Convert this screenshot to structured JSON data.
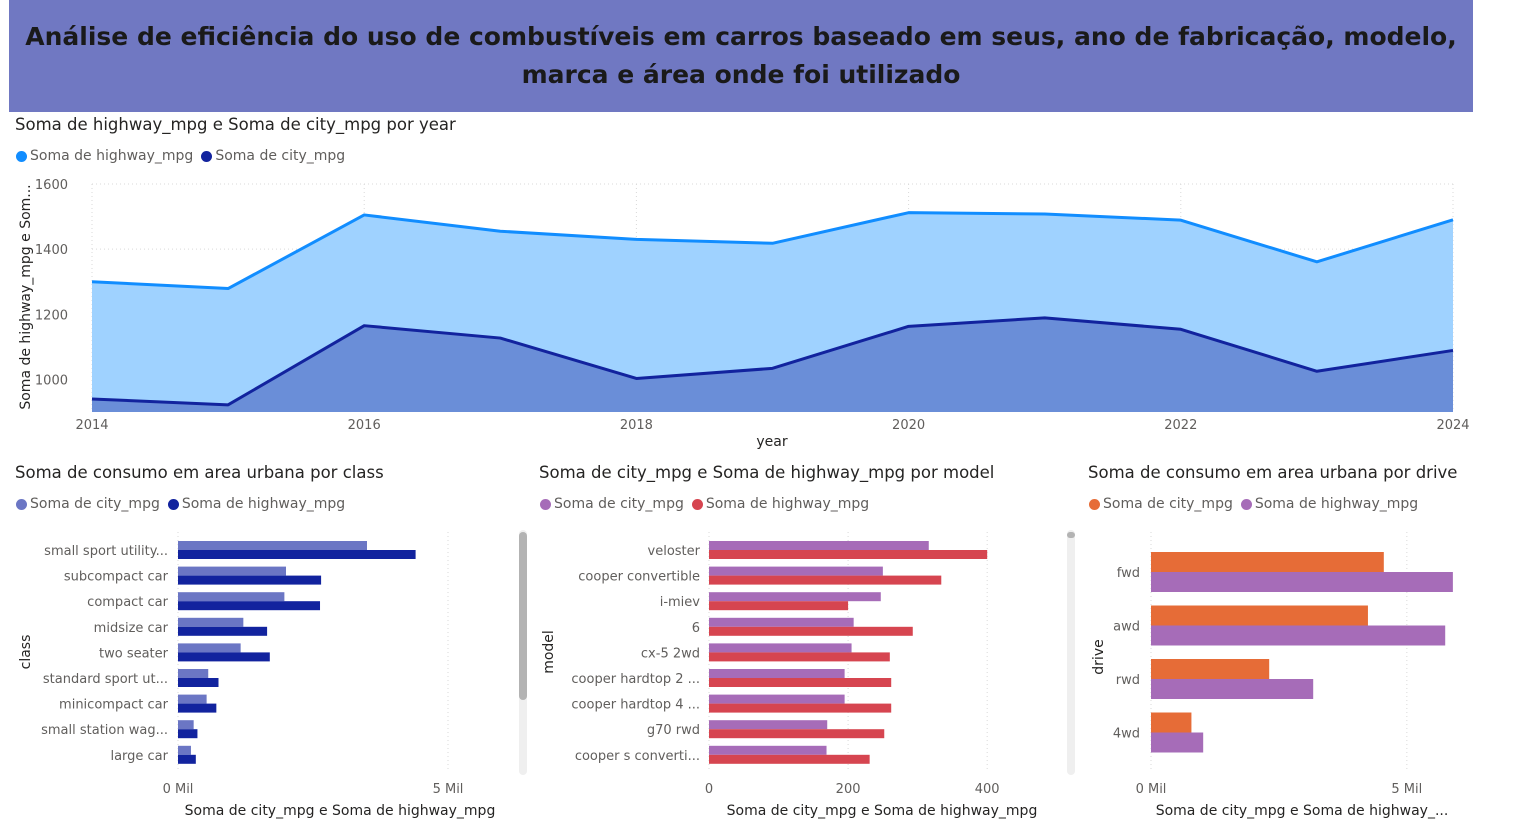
{
  "header": {
    "title": "Análise de eficiência do uso de combustíveis em carros baseado em seus, ano de fabricação, modelo, marca e área onde foi utilizado"
  },
  "chart_data": [
    {
      "id": "year_area",
      "type": "area",
      "title": "Soma de highway_mpg e Soma de city_mpg por year",
      "xlabel": "year",
      "ylabel": "Soma de highway_mpg e Som...",
      "ylim": [
        900,
        1600
      ],
      "xlim": [
        2014,
        2024
      ],
      "yticks": [
        1000,
        1200,
        1400,
        1600
      ],
      "xticks": [
        2014,
        2016,
        2018,
        2020,
        2022,
        2024
      ],
      "grid": true,
      "legend_position": "top-left",
      "x": [
        2014,
        2015,
        2016,
        2017,
        2018,
        2019,
        2020,
        2021,
        2022,
        2023,
        2024
      ],
      "series": [
        {
          "name": "Soma de highway_mpg",
          "color": "#118dff",
          "fill": "#9fd2ff",
          "values": [
            1300,
            1279,
            1505,
            1455,
            1430,
            1418,
            1512,
            1508,
            1489,
            1361,
            1490
          ]
        },
        {
          "name": "Soma de city_mpg",
          "color": "#12239e",
          "fill": "#6a8ed8",
          "values": [
            940,
            922,
            1165,
            1127,
            1003,
            1034,
            1163,
            1189,
            1154,
            1025,
            1089
          ]
        }
      ]
    },
    {
      "id": "class_bar",
      "type": "bar",
      "orientation": "horizontal",
      "title": "Soma de consumo em area urbana por class",
      "xlabel": "Soma de city_mpg e Soma de highway_mpg",
      "ylabel": "class",
      "xlim": [
        0,
        5000
      ],
      "xtick_labels": [
        "0 Mil",
        "5 Mil"
      ],
      "grid": true,
      "legend_position": "top-left",
      "categories": [
        "small sport utility...",
        "subcompact car",
        "compact car",
        "midsize car",
        "two seater",
        "standard sport ut...",
        "minicompact car",
        "small station wag...",
        "large car"
      ],
      "series": [
        {
          "name": "Soma de city_mpg",
          "color": "#6b76c4",
          "values": [
            3500,
            2000,
            1970,
            1210,
            1160,
            560,
            530,
            290,
            240
          ]
        },
        {
          "name": "Soma de highway_mpg",
          "color": "#12239e",
          "values": [
            4400,
            2650,
            2630,
            1650,
            1700,
            750,
            710,
            360,
            330
          ]
        }
      ]
    },
    {
      "id": "model_bar",
      "type": "bar",
      "orientation": "horizontal",
      "title": "Soma de city_mpg e Soma de highway_mpg por model",
      "xlabel": "Soma de city_mpg e Soma de highway_mpg",
      "ylabel": "model",
      "xlim": [
        0,
        440
      ],
      "xtick_labels": [
        "0",
        "200",
        "400"
      ],
      "xtick_values": [
        0,
        200,
        400
      ],
      "grid": true,
      "legend_position": "top-left",
      "categories": [
        "veloster",
        "cooper convertible",
        "i-miev",
        "6",
        "cx-5 2wd",
        "cooper hardtop 2 ...",
        "cooper hardtop 4 ...",
        "g70 rwd",
        "cooper s converti..."
      ],
      "series": [
        {
          "name": "Soma de city_mpg",
          "color": "#a66cb8",
          "values": [
            316,
            250,
            247,
            208,
            205,
            195,
            195,
            170,
            169
          ]
        },
        {
          "name": "Soma de highway_mpg",
          "color": "#d64550",
          "values": [
            400,
            334,
            200,
            293,
            260,
            262,
            262,
            252,
            231
          ]
        }
      ]
    },
    {
      "id": "drive_bar",
      "type": "bar",
      "orientation": "horizontal",
      "title": "Soma de consumo em area urbana por drive",
      "xlabel": "Soma de city_mpg e Soma de highway_...",
      "ylabel": "drive",
      "xlim": [
        0,
        6000
      ],
      "xtick_labels": [
        "0 Mil",
        "5 Mil"
      ],
      "grid": true,
      "legend_position": "top-left",
      "categories": [
        "fwd",
        "awd",
        "rwd",
        "4wd"
      ],
      "series": [
        {
          "name": "Soma de city_mpg",
          "color": "#e66c37",
          "values": [
            4550,
            4240,
            2310,
            790
          ]
        },
        {
          "name": "Soma de highway_mpg",
          "color": "#a66cb8",
          "values": [
            5900,
            5750,
            3170,
            1020
          ]
        }
      ]
    }
  ]
}
